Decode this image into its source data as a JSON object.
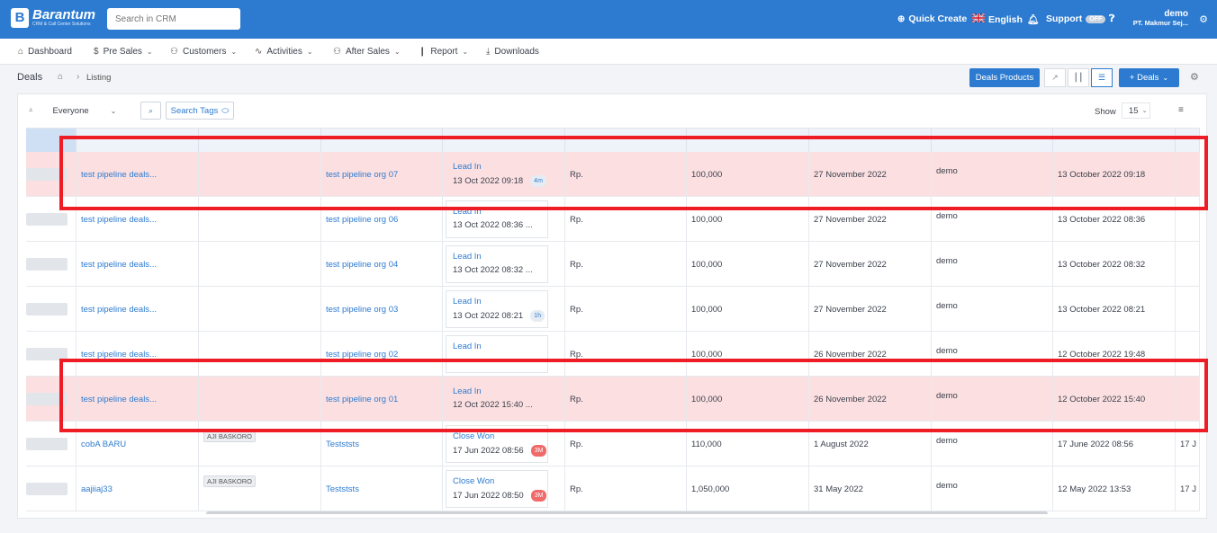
{
  "brand": {
    "name": "Barantum",
    "tagline": "CRM & Call Center Solutions"
  },
  "search": {
    "placeholder": "Search in CRM"
  },
  "topbar": {
    "quick_create": "Quick Create",
    "language": "English",
    "support": "Support",
    "support_toggle": "OFF",
    "user_name": "demo",
    "user_org": "PT. Makmur Sej..."
  },
  "nav": {
    "items": [
      {
        "label": "Dashboard",
        "icon": "dashboard-icon"
      },
      {
        "label": "Pre Sales",
        "icon": "dollar-icon"
      },
      {
        "label": "Customers",
        "icon": "users-icon"
      },
      {
        "label": "Activities",
        "icon": "activity-icon"
      },
      {
        "label": "After Sales",
        "icon": "users-icon"
      },
      {
        "label": "Report",
        "icon": "bar-chart-icon"
      },
      {
        "label": "Downloads",
        "icon": "download-icon"
      }
    ]
  },
  "page": {
    "title": "Deals",
    "breadcrumb_current": "Listing",
    "deals_products_button": "Deals Products",
    "add_deals_button": "+   Deals"
  },
  "filters": {
    "owner_filter": "Everyone",
    "search_tags": "Search Tags",
    "show_label": "Show",
    "page_size": "15"
  },
  "rows": [
    {
      "name": "test pipeline deals...",
      "owner": "",
      "org": "test pipeline org 07",
      "stage": "Lead In",
      "stage_date": "13 Oct 2022 09:18",
      "age": "4m",
      "age_style": "normal",
      "currency": "Rp.",
      "amount": "100,000",
      "close_date": "27 November 2022",
      "created_by": "demo",
      "created_at": "13 October 2022 09:18",
      "extra": "",
      "highlight": true
    },
    {
      "name": "test pipeline deals...",
      "owner": "",
      "org": "test pipeline org 06",
      "stage": "Lead In",
      "stage_date": "13 Oct 2022 08:36 ...",
      "age": "",
      "age_style": "normal",
      "currency": "Rp.",
      "amount": "100,000",
      "close_date": "27 November 2022",
      "created_by": "demo",
      "created_at": "13 October 2022 08:36",
      "extra": "",
      "highlight": false
    },
    {
      "name": "test pipeline deals...",
      "owner": "",
      "org": "test pipeline org 04",
      "stage": "Lead In",
      "stage_date": "13 Oct 2022 08:32 ...",
      "age": "",
      "age_style": "normal",
      "currency": "Rp.",
      "amount": "100,000",
      "close_date": "27 November 2022",
      "created_by": "demo",
      "created_at": "13 October 2022 08:32",
      "extra": "",
      "highlight": false
    },
    {
      "name": "test pipeline deals...",
      "owner": "",
      "org": "test pipeline org 03",
      "stage": "Lead In",
      "stage_date": "13 Oct 2022 08:21",
      "age": "1h",
      "age_style": "normal",
      "currency": "Rp.",
      "amount": "100,000",
      "close_date": "27 November 2022",
      "created_by": "demo",
      "created_at": "13 October 2022 08:21",
      "extra": "",
      "highlight": false
    },
    {
      "name": "test pipeline deals...",
      "owner": "",
      "org": "test pipeline org 02",
      "stage": "Lead In",
      "stage_date": "",
      "age": "",
      "age_style": "normal",
      "currency": "Rp.",
      "amount": "100,000",
      "close_date": "26 November 2022",
      "created_by": "demo",
      "created_at": "12 October 2022 19:48",
      "extra": "",
      "highlight": false
    },
    {
      "name": "test pipeline deals...",
      "owner": "",
      "org": "test pipeline org 01",
      "stage": "Lead In",
      "stage_date": "12 Oct 2022 15:40 ...",
      "age": "",
      "age_style": "normal",
      "currency": "Rp.",
      "amount": "100,000",
      "close_date": "26 November 2022",
      "created_by": "demo",
      "created_at": "12 October 2022 15:40",
      "extra": "",
      "highlight": true
    },
    {
      "name": "cobA BARU",
      "owner": "AJI BASKORO",
      "org": "Testststs",
      "stage": "Close Won",
      "stage_date": "17 Jun 2022 08:56",
      "age": "3M",
      "age_style": "red",
      "currency": "Rp.",
      "amount": "110,000",
      "close_date": "1 August 2022",
      "created_by": "demo",
      "created_at": "17 June 2022 08:56",
      "extra": "17 J",
      "highlight": false
    },
    {
      "name": "aajiiaj33",
      "owner": "AJI BASKORO",
      "org": "Testststs",
      "stage": "Close Won",
      "stage_date": "17 Jun 2022 08:50",
      "age": "3M",
      "age_style": "red",
      "currency": "Rp.",
      "amount": "1,050,000",
      "close_date": "31 May 2022",
      "created_by": "demo",
      "created_at": "12 May 2022 13:53",
      "extra": "17 J",
      "highlight": false
    }
  ],
  "annotation_color": "#ee1c24",
  "accent_color": "#2d7bd0"
}
